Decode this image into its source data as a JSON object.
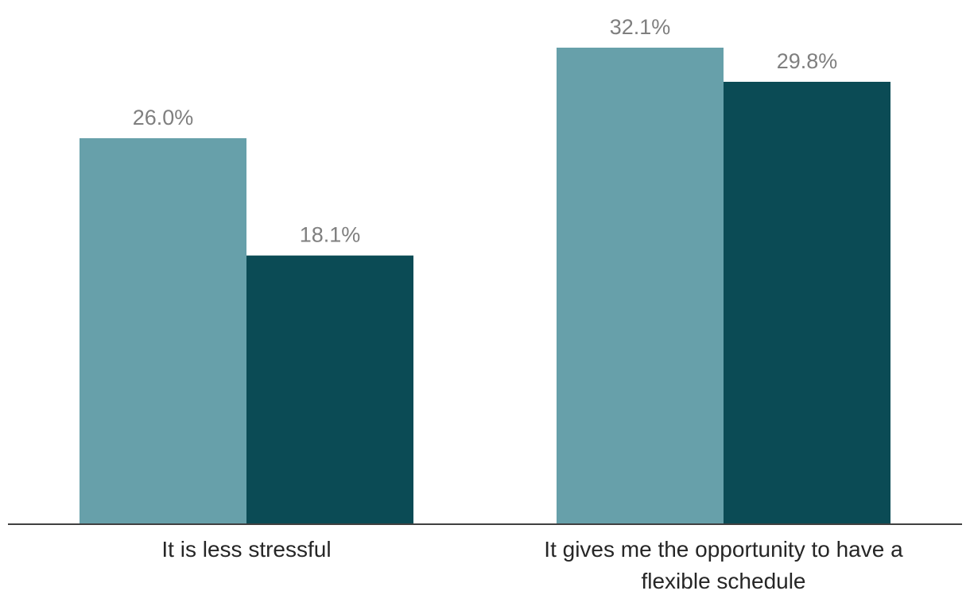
{
  "chart_data": {
    "type": "bar",
    "title": "",
    "xlabel": "",
    "ylabel": "",
    "categories": [
      [
        "It is less stressful"
      ],
      [
        "It gives me the opportunity to have a",
        "flexible schedule"
      ]
    ],
    "series": [
      {
        "name": "",
        "color": "#67a0aa",
        "values": [
          26.0,
          32.1
        ],
        "labels": [
          "26.0%",
          "32.1%"
        ]
      },
      {
        "name": "",
        "color": "#0b4b55",
        "values": [
          18.1,
          29.8
        ],
        "labels": [
          "18.1%",
          "29.8%"
        ]
      }
    ],
    "ylim": [
      0,
      34
    ],
    "grid": false,
    "axis_color": "#404040"
  }
}
